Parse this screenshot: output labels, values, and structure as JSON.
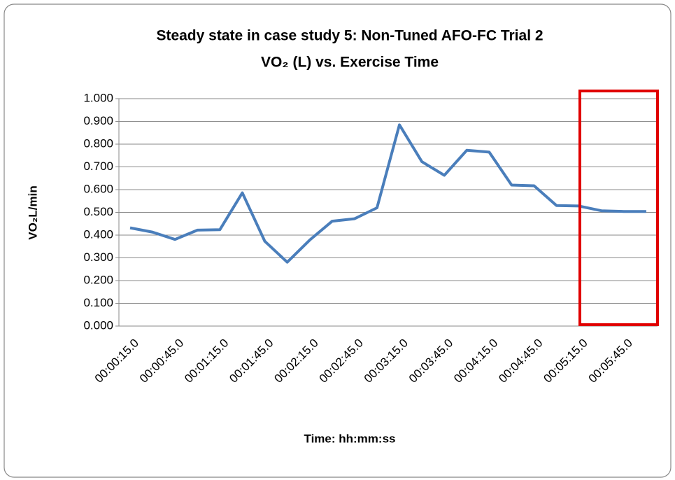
{
  "chart_data": {
    "type": "line",
    "title": "Steady state in case study 5:  Non-Tuned AFO-FC Trial 2",
    "subtitle": "VO₂ (L)  vs.  Exercise Time",
    "x_label": "Time: hh:mm:ss",
    "y_label": "VO₂L/min",
    "categories": [
      "00:00:15.0",
      null,
      "00:00:45.0",
      null,
      "00:01:15.0",
      null,
      "00:01:45.0",
      null,
      "00:02:15.0",
      null,
      "00:02:45.0",
      null,
      "00:03:15.0",
      null,
      "00:03:45.0",
      null,
      "00:04:15.0",
      null,
      "00:04:45.0",
      null,
      "00:05:15.0",
      null,
      "00:05:45.0",
      null
    ],
    "series": [
      {
        "name": "VO₂",
        "color": "#4a7ebb",
        "values": [
          0.432,
          0.413,
          0.381,
          0.422,
          0.424,
          0.586,
          0.373,
          0.281,
          0.378,
          0.461,
          0.472,
          0.52,
          0.885,
          0.723,
          0.663,
          0.773,
          0.765,
          0.62,
          0.617,
          0.53,
          0.528,
          0.507,
          0.504,
          0.504
        ]
      }
    ],
    "ylim": [
      0,
      1
    ],
    "yticks": [
      {
        "value": 0,
        "label": "0.000"
      },
      {
        "value": 0.1,
        "label": "0.100"
      },
      {
        "value": 0.2,
        "label": "0.200"
      },
      {
        "value": 0.3,
        "label": "0.300"
      },
      {
        "value": 0.4,
        "label": "0.400"
      },
      {
        "value": 0.5,
        "label": "0.500"
      },
      {
        "value": 0.6,
        "label": "0.600"
      },
      {
        "value": 0.7,
        "label": "0.700"
      },
      {
        "value": 0.8,
        "label": "0.800"
      },
      {
        "value": 0.9,
        "label": "0.900"
      },
      {
        "value": 1,
        "label": "1.000"
      }
    ],
    "grid": true
  }
}
